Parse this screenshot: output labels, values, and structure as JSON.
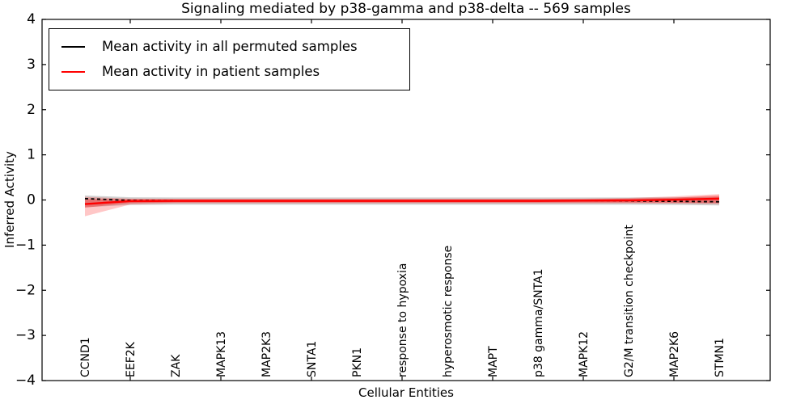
{
  "title": "Signaling mediated by p38-gamma and p38-delta -- 569 samples",
  "legend": {
    "position": "upper left",
    "items": [
      {
        "label": "Mean activity in all permuted samples",
        "color": "#000000"
      },
      {
        "label": "Mean activity in patient samples",
        "color": "#ff0000"
      }
    ]
  },
  "chart_data": {
    "type": "line",
    "title": "Signaling mediated by p38-gamma and p38-delta -- 569 samples",
    "xlabel": "Cellular Entities",
    "ylabel": "Inferred Activity",
    "ylim": [
      -4,
      4
    ],
    "grid": false,
    "legend_position": "upper left",
    "yticks": {
      "values": [
        4,
        3,
        2,
        1,
        0,
        -1,
        -2,
        -3,
        -4
      ],
      "labels": [
        "4",
        "3",
        "2",
        "1",
        "0",
        "−1",
        "−2",
        "−3",
        "−4"
      ]
    },
    "xtick_mark_indices": [
      1,
      3,
      5,
      7,
      9,
      11,
      13
    ],
    "categories": [
      "CCND1",
      "EEF2K",
      "ZAK",
      "MAPK13",
      "MAP2K3",
      "SNTA1",
      "PKN1",
      "response to hypoxia",
      "hyperosmotic response",
      "MAPT",
      "p38 gamma/SNTA1",
      "MAPK12",
      "G2/M transition checkpoint",
      "MAP2K6",
      "STMN1"
    ],
    "series": [
      {
        "name": "Mean activity in all permuted samples",
        "color": "#000000",
        "linestyle": "dashed",
        "values": [
          0.03,
          -0.01,
          -0.015,
          -0.015,
          -0.015,
          -0.015,
          -0.015,
          -0.015,
          -0.015,
          -0.015,
          -0.015,
          -0.015,
          -0.02,
          -0.03,
          -0.04
        ]
      },
      {
        "name": "Mean activity in patient samples",
        "color": "#ff0000",
        "linestyle": "solid",
        "values": [
          -0.09,
          -0.025,
          -0.02,
          -0.02,
          -0.02,
          -0.02,
          -0.02,
          -0.02,
          -0.02,
          -0.02,
          -0.02,
          -0.015,
          -0.01,
          0.005,
          0.03
        ]
      }
    ],
    "bands": [
      {
        "name": "permuted-samples-range",
        "color": "#999999",
        "opacity": 0.45,
        "upper": [
          0.1,
          0.06,
          0.055,
          0.055,
          0.055,
          0.055,
          0.055,
          0.055,
          0.055,
          0.055,
          0.055,
          0.055,
          0.055,
          0.06,
          0.07
        ],
        "lower": [
          -0.16,
          -0.11,
          -0.105,
          -0.105,
          -0.105,
          -0.105,
          -0.105,
          -0.105,
          -0.105,
          -0.105,
          -0.105,
          -0.105,
          -0.105,
          -0.11,
          -0.12
        ]
      },
      {
        "name": "patient-samples-range-outer",
        "color": "#ff0000",
        "opacity": 0.22,
        "upper": [
          0.07,
          0.03,
          0.025,
          0.025,
          0.025,
          0.025,
          0.025,
          0.025,
          0.025,
          0.025,
          0.025,
          0.03,
          0.045,
          0.08,
          0.13
        ],
        "lower": [
          -0.36,
          -0.1,
          -0.075,
          -0.075,
          -0.075,
          -0.075,
          -0.075,
          -0.075,
          -0.075,
          -0.075,
          -0.075,
          -0.075,
          -0.075,
          -0.08,
          -0.09
        ]
      },
      {
        "name": "patient-samples-range-inner",
        "color": "#ff0000",
        "opacity": 0.3,
        "upper": [
          0.02,
          0.02,
          0.018,
          0.018,
          0.018,
          0.018,
          0.018,
          0.018,
          0.018,
          0.018,
          0.018,
          0.02,
          0.03,
          0.05,
          0.1
        ],
        "lower": [
          -0.17,
          -0.07,
          -0.055,
          -0.055,
          -0.055,
          -0.055,
          -0.055,
          -0.055,
          -0.055,
          -0.055,
          -0.055,
          -0.055,
          -0.055,
          -0.06,
          -0.07
        ]
      }
    ]
  }
}
